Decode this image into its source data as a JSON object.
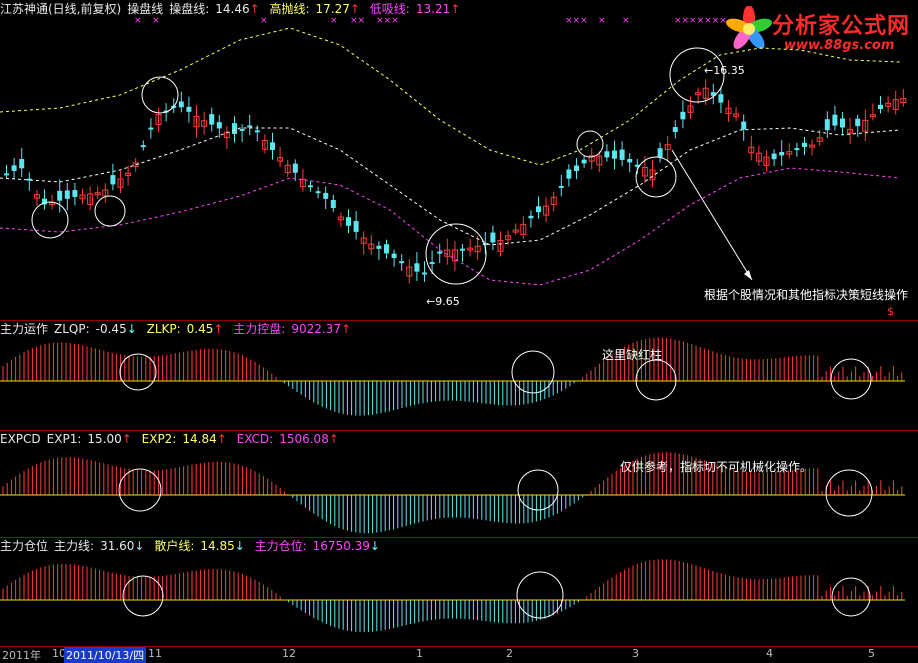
{
  "main_header": {
    "stock": "江苏神通(日线,前复权)",
    "cpx_label": "操盘线",
    "cpx_name": "操盘线:",
    "cpx_value": "14.46",
    "cpx_arrow": "↑",
    "high_name": "高抛线:",
    "high_value": "17.27",
    "high_arrow": "↑",
    "low_name": "低吸线:",
    "low_value": "13.21",
    "low_arrow": "↑"
  },
  "price_labels": {
    "high": "16.35",
    "low": "9.65"
  },
  "price_note": "根据个股情况和其他指标决策短线操作",
  "dollar_mark": "$",
  "panel1": {
    "title": "主力运作",
    "n1": "ZLQP:",
    "v1": "-0.45",
    "a1": "↓",
    "n2": "ZLKP:",
    "v2": "0.45",
    "a2": "↑",
    "n3": "主力控盘:",
    "v3": "9022.37",
    "a3": "↑",
    "note": "这里缺红柱"
  },
  "panel2": {
    "title": "EXPCD",
    "n1": "EXP1:",
    "v1": "15.00",
    "a1": "↑",
    "n2": "EXP2:",
    "v2": "14.84",
    "a2": "↑",
    "n3": "EXCD:",
    "v3": "1506.08",
    "a3": "↑",
    "note": "仅供参考，指标切不可机械化操作。"
  },
  "panel3": {
    "title": "主力仓位",
    "n1": "主力线:",
    "v1": "31.60",
    "a1": "↓",
    "n2": "散户线:",
    "v2": "14.85",
    "a2": "↓",
    "n3": "主力仓位:",
    "v3": "16750.39",
    "a3": "↓"
  },
  "x_marks": [
    "×",
    "×",
    "×",
    "×",
    "××",
    "×××",
    "×××",
    "×",
    "×",
    "×××××××"
  ],
  "axis": {
    "labels": [
      "2011年",
      "10",
      "2011/10/13/四",
      "11",
      "12",
      "1",
      "2",
      "3",
      "4",
      "5"
    ]
  },
  "logo": {
    "name": "分析家公式网",
    "url": "www.88gs.com"
  },
  "colors": {
    "up": "#ff3b3b",
    "down": "#5ee6f0",
    "high_line": "#ffff66",
    "mid_line": "#ffffff",
    "low_line": "#ff44ff",
    "separator": "#8b0000"
  }
}
